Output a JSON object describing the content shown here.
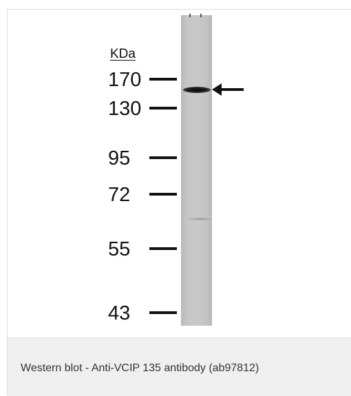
{
  "figure": {
    "unit_label": "KDa",
    "markers": [
      {
        "label": "170",
        "kda": 170
      },
      {
        "label": "130",
        "kda": 130
      },
      {
        "label": "95",
        "kda": 95
      },
      {
        "label": "72",
        "kda": 72
      },
      {
        "label": "55",
        "kda": 55
      },
      {
        "label": "43",
        "kda": 43
      }
    ],
    "arrow_icon": "left-arrow-icon",
    "caption": "Western blot - Anti-VCIP 135 antibody (ab97812)"
  }
}
